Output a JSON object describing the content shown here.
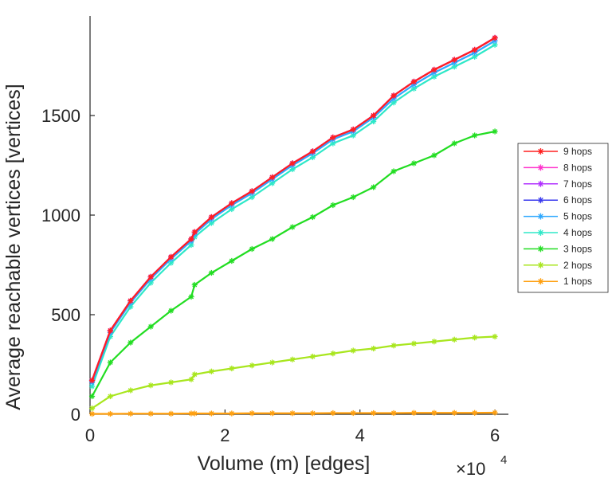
{
  "chart_data": {
    "type": "line",
    "title": "",
    "xlabel": "Volume (m) [edges]",
    "ylabel": "Average reachable vertices [vertices]",
    "x_exponent_label": "×10",
    "x_exponent_power": "4",
    "xlim": [
      0,
      6.2
    ],
    "ylim": [
      0,
      2000
    ],
    "xticks": [
      0,
      2,
      4,
      6
    ],
    "xtick_labels": [
      "0",
      "2",
      "4",
      "6"
    ],
    "yticks": [
      0,
      500,
      1000,
      1500
    ],
    "ytick_labels": [
      "0",
      "500",
      "1000",
      "1500"
    ],
    "grid": false,
    "legend_position": "right",
    "x": [
      0.03,
      0.3,
      0.6,
      0.9,
      1.2,
      1.5,
      1.55,
      1.8,
      2.1,
      2.4,
      2.7,
      3.0,
      3.3,
      3.6,
      3.9,
      4.2,
      4.5,
      4.8,
      5.1,
      5.4,
      5.7,
      6.0
    ],
    "series": [
      {
        "name": "9 hops",
        "color": "#ff2020",
        "values": [
          170,
          420,
          570,
          690,
          790,
          880,
          915,
          990,
          1060,
          1120,
          1190,
          1260,
          1320,
          1390,
          1430,
          1500,
          1600,
          1670,
          1730,
          1780,
          1830,
          1890
        ]
      },
      {
        "name": "8 hops",
        "color": "#ff33cc",
        "values": [
          170,
          420,
          570,
          690,
          790,
          880,
          915,
          990,
          1060,
          1120,
          1190,
          1260,
          1320,
          1390,
          1430,
          1500,
          1600,
          1670,
          1730,
          1780,
          1830,
          1890
        ]
      },
      {
        "name": "7 hops",
        "color": "#b030ff",
        "values": [
          170,
          420,
          570,
          690,
          790,
          880,
          915,
          990,
          1060,
          1120,
          1190,
          1260,
          1320,
          1390,
          1430,
          1500,
          1600,
          1670,
          1730,
          1780,
          1830,
          1890
        ]
      },
      {
        "name": "6 hops",
        "color": "#3a3aee",
        "values": [
          170,
          420,
          570,
          690,
          790,
          880,
          915,
          990,
          1060,
          1120,
          1190,
          1260,
          1320,
          1390,
          1430,
          1500,
          1600,
          1670,
          1730,
          1780,
          1830,
          1890
        ]
      },
      {
        "name": "5 hops",
        "color": "#2ea8ff",
        "values": [
          160,
          410,
          560,
          680,
          780,
          870,
          905,
          980,
          1050,
          1110,
          1180,
          1250,
          1310,
          1380,
          1420,
          1490,
          1585,
          1655,
          1715,
          1765,
          1815,
          1875
        ]
      },
      {
        "name": "4 hops",
        "color": "#2ee8c8",
        "values": [
          140,
          390,
          540,
          660,
          760,
          850,
          890,
          960,
          1030,
          1090,
          1160,
          1230,
          1290,
          1360,
          1400,
          1470,
          1565,
          1635,
          1695,
          1745,
          1795,
          1855
        ]
      },
      {
        "name": "3 hops",
        "color": "#22dd22",
        "values": [
          90,
          260,
          360,
          440,
          520,
          590,
          650,
          710,
          770,
          830,
          880,
          940,
          990,
          1050,
          1090,
          1140,
          1220,
          1260,
          1300,
          1360,
          1400,
          1420
        ]
      },
      {
        "name": "2 hops",
        "color": "#a8e61e",
        "values": [
          30,
          90,
          120,
          145,
          160,
          175,
          200,
          215,
          230,
          245,
          260,
          275,
          290,
          305,
          320,
          330,
          345,
          355,
          365,
          375,
          385,
          390
        ]
      },
      {
        "name": "1 hops",
        "color": "#ffa010",
        "values": [
          2,
          2,
          3,
          3,
          3,
          4,
          4,
          4,
          4,
          5,
          5,
          5,
          5,
          6,
          6,
          6,
          6,
          7,
          7,
          7,
          7,
          8
        ]
      }
    ]
  }
}
